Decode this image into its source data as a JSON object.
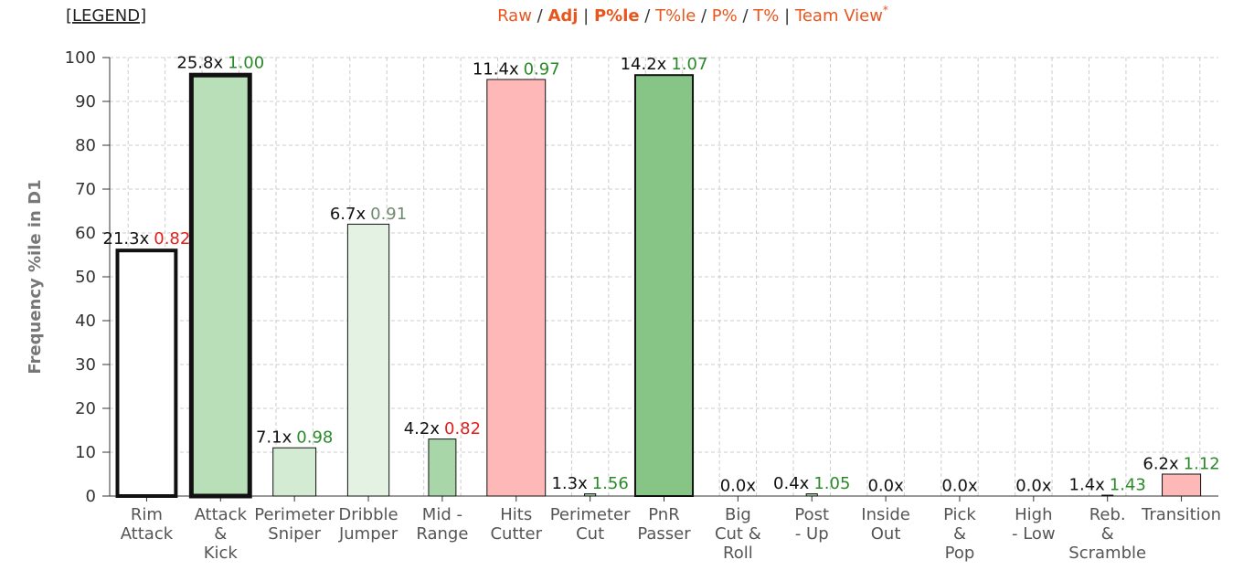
{
  "header": {
    "legend": "[LEGEND]",
    "nav": [
      {
        "text": "Raw",
        "bold": false,
        "link": true
      },
      {
        "text": " / ",
        "bold": false,
        "link": false
      },
      {
        "text": "Adj",
        "bold": true,
        "link": true
      },
      {
        "text": " | ",
        "bold": false,
        "link": false
      },
      {
        "text": "P%le",
        "bold": true,
        "link": true
      },
      {
        "text": " / ",
        "bold": false,
        "link": false
      },
      {
        "text": "T%le",
        "bold": false,
        "link": true
      },
      {
        "text": " / ",
        "bold": false,
        "link": false
      },
      {
        "text": "P%",
        "bold": false,
        "link": true
      },
      {
        "text": " / ",
        "bold": false,
        "link": false
      },
      {
        "text": "T%",
        "bold": false,
        "link": true
      },
      {
        "text": " | ",
        "bold": false,
        "link": false
      },
      {
        "text": "Team View",
        "bold": false,
        "link": true
      }
    ],
    "nav_mark": "*"
  },
  "chart_data": {
    "type": "bar",
    "y_label": "Frequency %ile in D1",
    "categories": [
      [
        "Rim",
        "Attack"
      ],
      [
        "Attack",
        "&",
        "Kick"
      ],
      [
        "Perimeter",
        "Sniper"
      ],
      [
        "Dribble",
        "Jumper"
      ],
      [
        "Mid -",
        "Range"
      ],
      [
        "Hits",
        "Cutter"
      ],
      [
        "Perimeter",
        "Cut"
      ],
      [
        "PnR",
        "Passer"
      ],
      [
        "Big",
        "Cut &",
        "Roll"
      ],
      [
        "Post",
        "- Up"
      ],
      [
        "Inside",
        "Out"
      ],
      [
        "Pick",
        "&",
        "Pop"
      ],
      [
        "High",
        "- Low"
      ],
      [
        "Reb.",
        "&",
        "Scramble"
      ],
      [
        "Transition"
      ]
    ],
    "values": [
      56,
      96,
      11,
      62,
      13,
      95,
      0.5,
      96,
      0,
      0.5,
      0,
      0,
      0,
      0.2,
      5
    ],
    "frequency_labels": [
      "21.3x",
      "25.8x",
      "7.1x",
      "6.7x",
      "4.2x",
      "11.4x",
      "1.3x",
      "14.2x",
      "0.0x",
      "0.4x",
      "0.0x",
      "0.0x",
      "0.0x",
      "1.4x",
      "6.2x"
    ],
    "efficiency_labels": [
      "0.82",
      "1.00",
      "0.98",
      "0.91",
      "0.82",
      "0.97",
      "1.56",
      "1.07",
      null,
      "1.05",
      null,
      null,
      null,
      "1.43",
      "1.12"
    ],
    "efficiency_colors": [
      "#e0201c",
      "#2a8a2a",
      "#2a8a2a",
      "#6f8a6f",
      "#e0201c",
      "#2a8a2a",
      "#2a8a2a",
      "#2a8a2a",
      null,
      "#2a8a2a",
      null,
      null,
      null,
      "#2a8a2a",
      "#2a8a2a"
    ],
    "fills": [
      "#ffffff",
      "#b9dfb9",
      "#d3ebd3",
      "#e3f2e3",
      "#a9d6a9",
      "#ffb8b8",
      "#a9d6a9",
      "#86c586",
      "#ffffff",
      "#a9d6a9",
      "#ffffff",
      "#ffffff",
      "#ffffff",
      "#a9d6a9",
      "#ffb8b8"
    ],
    "stroke_widths": [
      4,
      5,
      1,
      1,
      1,
      1,
      1,
      2,
      1,
      1,
      1,
      1,
      1,
      1,
      1
    ],
    "bar_widths": [
      0.79,
      0.79,
      0.58,
      0.56,
      0.37,
      0.79,
      0.15,
      0.78,
      0.15,
      0.15,
      0.15,
      0.15,
      0.15,
      0.15,
      0.52
    ],
    "ylim": [
      0,
      100
    ],
    "yticks": [
      0,
      10,
      20,
      30,
      40,
      50,
      60,
      70,
      80,
      90,
      100
    ],
    "grid": true
  }
}
